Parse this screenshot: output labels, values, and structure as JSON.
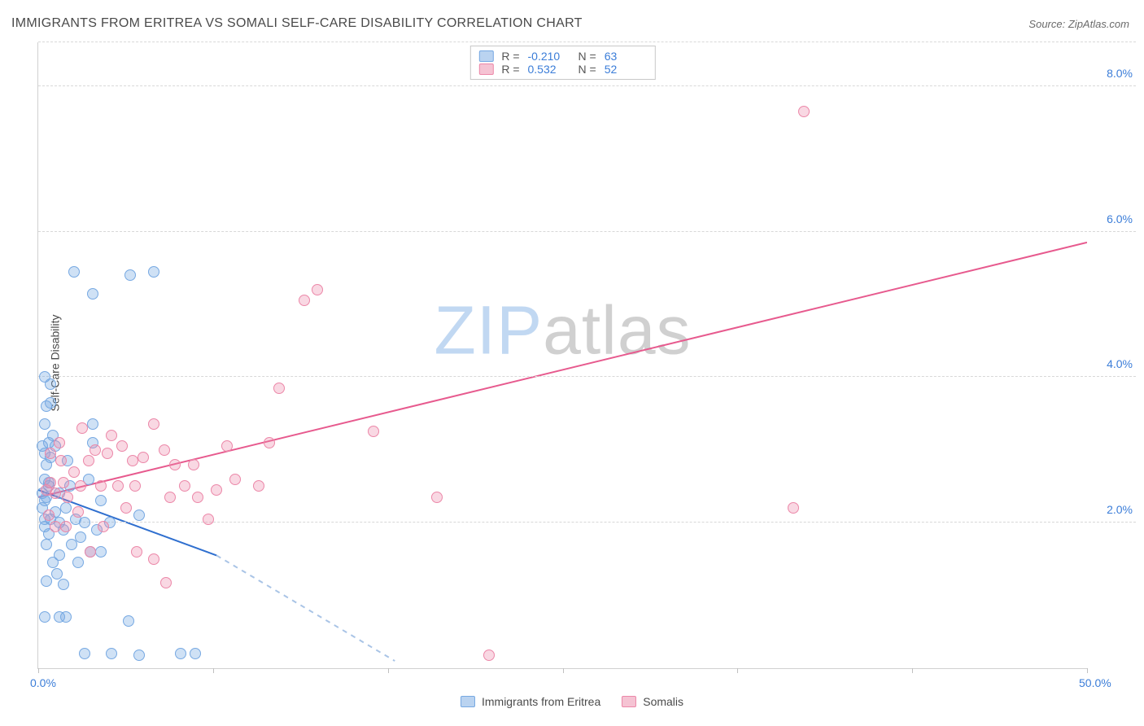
{
  "title": "IMMIGRANTS FROM ERITREA VS SOMALI SELF-CARE DISABILITY CORRELATION CHART",
  "source_label": "Source:",
  "source_name": "ZipAtlas.com",
  "y_axis_label": "Self-Care Disability",
  "watermark": {
    "part1": "ZIP",
    "part2": "atlas"
  },
  "chart": {
    "type": "scatter",
    "xlim": [
      0,
      50
    ],
    "ylim": [
      0,
      8.6
    ],
    "x_ticks": [
      0,
      8.33,
      16.67,
      25,
      33.33,
      41.67,
      50
    ],
    "x_tick_labels": {
      "0": "0.0%",
      "50": "50.0%"
    },
    "y_ticks": [
      2,
      4,
      6,
      8
    ],
    "y_tick_labels": {
      "2": "2.0%",
      "4": "4.0%",
      "6": "6.0%",
      "8": "8.0%"
    },
    "background_color": "#ffffff",
    "grid_color": "#d8d8d8",
    "marker_size": 14,
    "series": [
      {
        "id": "eritrea",
        "label": "Immigrants from Eritrea",
        "R": "-0.210",
        "N": "63",
        "marker_color": "#76a8e2",
        "marker_fill": "rgba(118,168,226,0.35)",
        "trend": {
          "x1": 0,
          "y1": 2.45,
          "x2_solid": 8.5,
          "y2_solid": 1.55,
          "x2_dash": 17,
          "y2_dash": 0.1,
          "line_color": "#2f6fcf",
          "dash_color": "#a9c4e6",
          "line_width": 2
        },
        "points": [
          [
            0.2,
            2.4
          ],
          [
            0.3,
            2.3
          ],
          [
            0.4,
            2.35
          ],
          [
            0.5,
            2.5
          ],
          [
            0.3,
            2.6
          ],
          [
            0.4,
            2.8
          ],
          [
            0.6,
            2.9
          ],
          [
            0.5,
            3.1
          ],
          [
            0.7,
            3.2
          ],
          [
            0.3,
            3.35
          ],
          [
            0.4,
            3.6
          ],
          [
            0.6,
            3.65
          ],
          [
            0.2,
            2.2
          ],
          [
            0.3,
            1.95
          ],
          [
            0.5,
            1.85
          ],
          [
            0.4,
            1.7
          ],
          [
            0.6,
            2.05
          ],
          [
            0.8,
            2.15
          ],
          [
            1.0,
            2.0
          ],
          [
            1.2,
            1.9
          ],
          [
            1.3,
            2.2
          ],
          [
            1.0,
            2.4
          ],
          [
            1.5,
            2.5
          ],
          [
            1.8,
            2.05
          ],
          [
            1.6,
            1.7
          ],
          [
            2.0,
            1.8
          ],
          [
            2.2,
            2.0
          ],
          [
            2.6,
            3.1
          ],
          [
            2.6,
            3.35
          ],
          [
            2.4,
            2.6
          ],
          [
            0.7,
            1.45
          ],
          [
            1.0,
            1.55
          ],
          [
            1.9,
            1.45
          ],
          [
            2.5,
            1.6
          ],
          [
            0.3,
            0.7
          ],
          [
            1.0,
            0.7
          ],
          [
            1.3,
            0.7
          ],
          [
            4.3,
            0.65
          ],
          [
            3.5,
            0.2
          ],
          [
            4.8,
            0.18
          ],
          [
            6.8,
            0.2
          ],
          [
            7.5,
            0.2
          ],
          [
            1.7,
            5.45
          ],
          [
            4.4,
            5.4
          ],
          [
            2.6,
            5.15
          ],
          [
            5.5,
            5.45
          ],
          [
            2.2,
            0.2
          ],
          [
            0.6,
            3.9
          ],
          [
            0.8,
            3.05
          ],
          [
            1.4,
            2.85
          ],
          [
            4.8,
            2.1
          ],
          [
            3.0,
            2.3
          ],
          [
            3.4,
            2.0
          ],
          [
            2.8,
            1.9
          ],
          [
            3.0,
            1.6
          ],
          [
            0.4,
            1.2
          ],
          [
            0.9,
            1.3
          ],
          [
            1.2,
            1.15
          ],
          [
            0.2,
            3.05
          ],
          [
            0.3,
            2.95
          ],
          [
            0.5,
            2.55
          ],
          [
            0.3,
            4.0
          ],
          [
            0.3,
            2.05
          ]
        ]
      },
      {
        "id": "somalis",
        "label": "Somalis",
        "R": "0.532",
        "N": "52",
        "marker_color": "#ec87a8",
        "marker_fill": "rgba(236,135,168,0.32)",
        "trend": {
          "x1": 0,
          "y1": 2.35,
          "x2_solid": 50,
          "y2_solid": 5.85,
          "line_color": "#e75a8e",
          "line_width": 2
        },
        "points": [
          [
            0.4,
            2.45
          ],
          [
            0.6,
            2.55
          ],
          [
            0.8,
            2.4
          ],
          [
            1.2,
            2.55
          ],
          [
            1.1,
            2.85
          ],
          [
            1.4,
            2.35
          ],
          [
            1.7,
            2.7
          ],
          [
            2.0,
            2.5
          ],
          [
            2.4,
            2.85
          ],
          [
            2.7,
            3.0
          ],
          [
            3.0,
            2.5
          ],
          [
            3.3,
            2.95
          ],
          [
            3.8,
            2.5
          ],
          [
            4.0,
            3.05
          ],
          [
            4.5,
            2.85
          ],
          [
            4.6,
            2.5
          ],
          [
            5.0,
            2.9
          ],
          [
            5.5,
            3.35
          ],
          [
            5.5,
            1.5
          ],
          [
            6.0,
            3.0
          ],
          [
            6.5,
            2.8
          ],
          [
            7.0,
            2.5
          ],
          [
            7.4,
            2.8
          ],
          [
            7.6,
            2.35
          ],
          [
            8.5,
            2.45
          ],
          [
            9.0,
            3.05
          ],
          [
            9.4,
            2.6
          ],
          [
            10.5,
            2.5
          ],
          [
            11.0,
            3.1
          ],
          [
            11.5,
            3.85
          ],
          [
            12.7,
            5.05
          ],
          [
            13.3,
            5.2
          ],
          [
            16.0,
            3.25
          ],
          [
            19.0,
            2.35
          ],
          [
            21.5,
            0.18
          ],
          [
            36.5,
            7.65
          ],
          [
            36.0,
            2.2
          ],
          [
            0.6,
            2.95
          ],
          [
            1.0,
            3.1
          ],
          [
            1.3,
            1.95
          ],
          [
            1.9,
            2.15
          ],
          [
            2.1,
            3.3
          ],
          [
            2.5,
            1.6
          ],
          [
            3.1,
            1.95
          ],
          [
            3.5,
            3.2
          ],
          [
            4.2,
            2.2
          ],
          [
            4.7,
            1.6
          ],
          [
            6.1,
            1.18
          ],
          [
            0.5,
            2.1
          ],
          [
            0.8,
            1.95
          ],
          [
            6.3,
            2.35
          ],
          [
            8.1,
            2.05
          ]
        ]
      }
    ]
  },
  "legend_top": {
    "r_label": "R =",
    "n_label": "N ="
  },
  "colors": {
    "tick_label": "#3b7dd8",
    "title_text": "#4a4a4a",
    "source_text": "#6a6a6a"
  }
}
